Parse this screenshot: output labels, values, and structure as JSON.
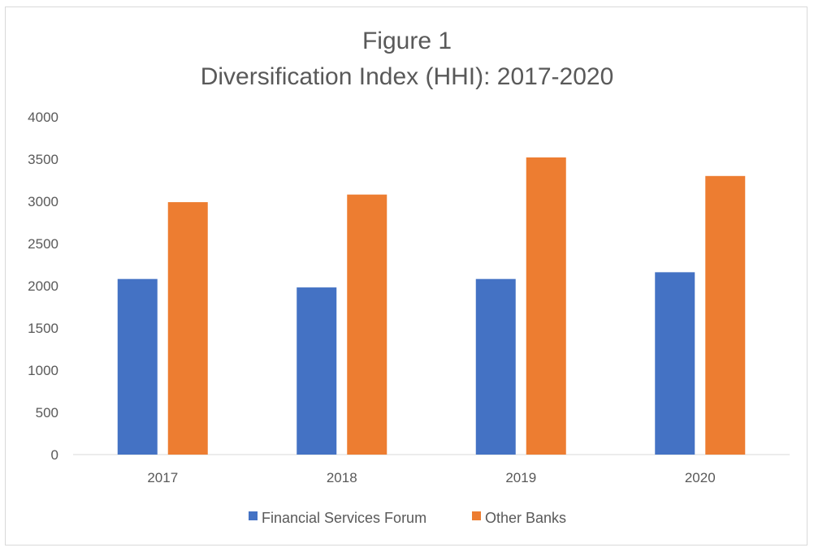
{
  "chart_data": {
    "type": "bar",
    "title": "Figure 1",
    "subtitle": "Diversification Index (HHI): 2017-2020",
    "xlabel": "",
    "ylabel": "",
    "categories": [
      "2017",
      "2018",
      "2019",
      "2020"
    ],
    "yticks": [
      "0",
      "500",
      "1000",
      "1500",
      "2000",
      "2500",
      "3000",
      "3500",
      "4000"
    ],
    "ylim": [
      0,
      4000
    ],
    "grid": false,
    "legend_position": "bottom",
    "series": [
      {
        "name": "Financial Services Forum",
        "color": "#4472c4",
        "values": [
          2080,
          1980,
          2080,
          2160
        ]
      },
      {
        "name": "Other Banks",
        "color": "#ed7d31",
        "values": [
          2990,
          3080,
          3520,
          3300
        ]
      }
    ]
  }
}
